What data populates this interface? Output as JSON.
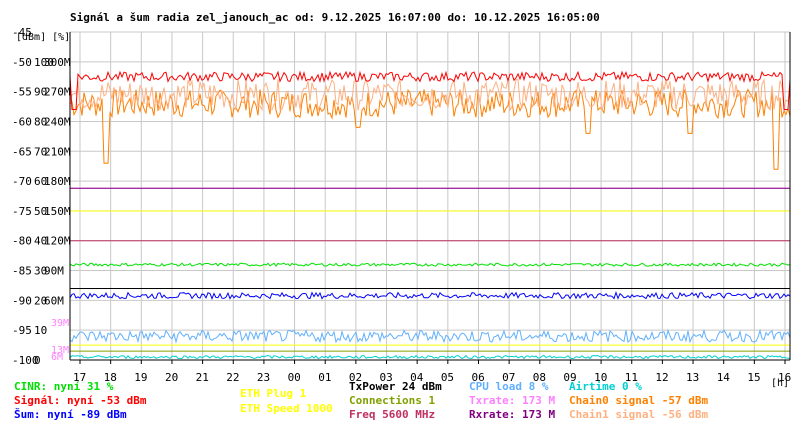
{
  "chart_data": {
    "type": "line",
    "title": "Signál a šum radia zel_janouch_ac od: 9.12.2025 16:07:00 do: 10.12.2025 16:05:00",
    "axis_units": "[dBm] [%]",
    "x_unit": "[h]",
    "x_ticks": [
      "17",
      "18",
      "19",
      "20",
      "21",
      "22",
      "23",
      "00",
      "01",
      "02",
      "03",
      "04",
      "05",
      "06",
      "07",
      "08",
      "09",
      "10",
      "11",
      "12",
      "13",
      "14",
      "15",
      "16"
    ],
    "y_dbm_ticks": [
      "-45",
      "-50",
      "-55",
      "-60",
      "-65",
      "-70",
      "-75",
      "-80",
      "-85",
      "-90",
      "-95",
      "-100"
    ],
    "y_pct_ticks": [
      "100",
      "90",
      "80",
      "70",
      "60",
      "50",
      "40",
      "30",
      "20",
      "10",
      "0"
    ],
    "y_rate_ticks": [
      "300M",
      "270M",
      "240M",
      "210M",
      "180M",
      "150M",
      "120M",
      "90M",
      "60M"
    ],
    "y_rate_small_ticks": [
      "39M",
      "13M",
      "6M"
    ],
    "ylim_dbm": [
      -100,
      -45
    ],
    "series": [
      {
        "name": "Chain0 signal -57 dBm",
        "color": "#ff8000",
        "scale": "dbm",
        "base": -57,
        "noise": 2.4,
        "spikes": [
          [
            0.05,
            -67
          ],
          [
            0.4,
            -61
          ],
          [
            0.72,
            -62
          ],
          [
            0.86,
            -62
          ],
          [
            0.98,
            -68
          ]
        ]
      },
      {
        "name": "Chain1 signal -56 dBm",
        "color": "#ffb080",
        "scale": "dbm",
        "base": -55.5,
        "noise": 2.6,
        "spikes": []
      },
      {
        "name": "Signál: nyní -53 dBm",
        "color": "#ff0000",
        "scale": "dbm",
        "base": -52.5,
        "noise": 0.8,
        "spikes": [
          [
            0.005,
            -58
          ],
          [
            0.995,
            -58
          ]
        ]
      },
      {
        "name": "Šum: nyní -89 dBm",
        "color": "#0000ff",
        "scale": "dbm",
        "base": -89.2,
        "noise": 0.5,
        "spikes": []
      },
      {
        "name": "CINR: nyní 31 %",
        "color": "#00e000",
        "scale": "pct",
        "base": 32,
        "noise": 0.5,
        "spikes": []
      },
      {
        "name": "Txrate: 173 M",
        "color": "#ff80ff",
        "scale": "rate",
        "base": 173,
        "noise": 0,
        "spikes": []
      },
      {
        "name": "Rxrate: 173 M",
        "color": "#800080",
        "scale": "rate",
        "base": 173,
        "noise": 0,
        "spikes": []
      },
      {
        "name": "CPU load 8 %",
        "color": "#60b0ff",
        "scale": "pct",
        "base": 8,
        "noise": 2,
        "spikes": []
      },
      {
        "name": "Airtime 0 %",
        "color": "#00d0d0",
        "scale": "pct",
        "base": 1,
        "noise": 0.5,
        "spikes": []
      },
      {
        "name": "ETH Plug 1",
        "color": "#ffff00",
        "scale": "pct",
        "base": 50,
        "noise": 0,
        "spikes": []
      },
      {
        "name": "ETH Speed 1000",
        "color": "#ffff00",
        "scale": "pct",
        "base": 5,
        "noise": 0,
        "spikes": []
      },
      {
        "name": "Connections 1",
        "color": "#80a000",
        "scale": "pct",
        "base": 3,
        "noise": 0,
        "spikes": []
      },
      {
        "name": "Freq 5600 MHz",
        "color": "#c03060",
        "scale": "pct",
        "base": 40,
        "noise": 0,
        "spikes": []
      },
      {
        "name": "TxPower 24 dBm",
        "color": "#000000",
        "scale": "pct",
        "base": 24,
        "noise": 0,
        "spikes": []
      }
    ]
  },
  "legend": {
    "col1": [
      {
        "text": "CINR: nyní 31 %",
        "color": "#00e000"
      },
      {
        "text": "Signál: nyní -53 dBm",
        "color": "#ff0000"
      },
      {
        "text": "Šum: nyní -89 dBm",
        "color": "#0000ff"
      }
    ],
    "col2": [
      {
        "text": "ETH Plug 1",
        "color": "#ffff00"
      },
      {
        "text": "ETH Speed 1000",
        "color": "#ffff00"
      }
    ],
    "col3": [
      {
        "text": "TxPower 24 dBm",
        "color": "#000000"
      },
      {
        "text": "Connections 1",
        "color": "#80a000"
      },
      {
        "text": "Freq 5600 MHz",
        "color": "#c03060"
      }
    ],
    "col4": [
      {
        "text": "CPU load 8 %",
        "color": "#60b0ff"
      },
      {
        "text": "Txrate: 173 M",
        "color": "#ff80ff"
      },
      {
        "text": "Rxrate: 173 M",
        "color": "#800080"
      }
    ],
    "col5": [
      {
        "text": "Airtime 0 %",
        "color": "#00d0d0"
      },
      {
        "text": "Chain0 signal -57 dBm",
        "color": "#ff8000"
      },
      {
        "text": "Chain1 signal -56 dBm",
        "color": "#ffb080"
      }
    ]
  }
}
